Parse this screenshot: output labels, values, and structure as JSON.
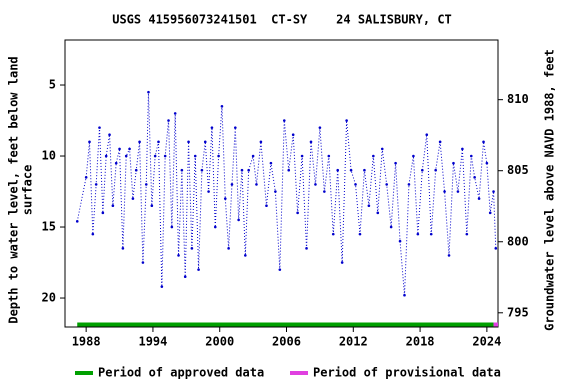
{
  "chart_data": {
    "type": "line",
    "title": "USGS 415956073241501  CT-SY    24 SALISBURY, CT",
    "ylabel": [
      "Depth to water level, feet below land",
      "surface"
    ],
    "y2label": "Groundwater level above NAVD 1988, feet",
    "xlim": [
      1986.1,
      2025.0
    ],
    "xticks": [
      1988,
      1994,
      2000,
      2006,
      2012,
      2018,
      2024
    ],
    "ylim": [
      1.83,
      22.04
    ],
    "y_inverted": true,
    "yticks": [
      5,
      10,
      15,
      20
    ],
    "y2lim": [
      794.0,
      814.2
    ],
    "y2ticks": [
      795,
      800,
      805,
      810
    ],
    "x": [
      1987.2,
      1988.0,
      1988.3,
      1988.6,
      1988.9,
      1989.2,
      1989.5,
      1989.8,
      1990.1,
      1990.4,
      1990.7,
      1991.0,
      1991.3,
      1991.6,
      1991.9,
      1992.2,
      1992.5,
      1992.8,
      1993.1,
      1993.4,
      1993.6,
      1993.9,
      1994.2,
      1994.5,
      1994.8,
      1995.1,
      1995.4,
      1995.7,
      1996.0,
      1996.3,
      1996.6,
      1996.9,
      1997.2,
      1997.5,
      1997.8,
      1998.1,
      1998.4,
      1998.7,
      1999.0,
      1999.3,
      1999.6,
      1999.9,
      2000.2,
      2000.5,
      2000.8,
      2001.1,
      2001.4,
      2001.7,
      2002.0,
      2002.3,
      2002.6,
      2003.0,
      2003.3,
      2003.7,
      2004.2,
      2004.6,
      2005.0,
      2005.4,
      2005.8,
      2006.2,
      2006.6,
      2007.0,
      2007.4,
      2007.8,
      2008.2,
      2008.6,
      2009.0,
      2009.4,
      2009.8,
      2010.2,
      2010.6,
      2011.0,
      2011.4,
      2011.8,
      2012.2,
      2012.6,
      2013.0,
      2013.4,
      2013.8,
      2014.2,
      2014.6,
      2015.0,
      2015.4,
      2015.8,
      2016.2,
      2016.6,
      2017.0,
      2017.4,
      2017.8,
      2018.2,
      2018.6,
      2019.0,
      2019.4,
      2019.8,
      2020.2,
      2020.6,
      2021.0,
      2021.4,
      2021.8,
      2022.2,
      2022.6,
      2022.9,
      2023.3,
      2023.7,
      2024.0,
      2024.3,
      2024.6,
      2024.8
    ],
    "series": [
      {
        "name": "Depth to water level",
        "color": "#0000cc",
        "values": [
          14.6,
          11.5,
          9.0,
          15.5,
          12.0,
          8.0,
          14.0,
          10.0,
          8.5,
          13.5,
          10.5,
          9.5,
          16.5,
          10.0,
          9.5,
          13.0,
          11.0,
          9.0,
          17.5,
          12.0,
          5.5,
          13.5,
          10.0,
          9.0,
          19.2,
          10.0,
          7.5,
          15.0,
          7.0,
          17.0,
          11.0,
          18.5,
          9.0,
          16.5,
          10.0,
          18.0,
          11.0,
          9.0,
          12.5,
          8.0,
          15.0,
          10.0,
          6.5,
          13.0,
          16.5,
          12.0,
          8.0,
          14.5,
          11.0,
          17.0,
          11.0,
          10.0,
          12.0,
          9.0,
          13.5,
          10.5,
          12.5,
          18.0,
          7.5,
          11.0,
          8.5,
          14.0,
          10.0,
          16.5,
          9.0,
          12.0,
          8.0,
          12.5,
          10.0,
          15.5,
          11.0,
          17.5,
          7.5,
          11.0,
          12.0,
          15.5,
          11.0,
          13.5,
          10.0,
          14.0,
          9.5,
          12.0,
          15.0,
          10.5,
          16.0,
          19.8,
          12.0,
          10.0,
          15.5,
          11.0,
          8.5,
          15.5,
          11.0,
          9.0,
          12.5,
          17.0,
          10.5,
          12.5,
          9.5,
          15.5,
          10.0,
          11.5,
          13.0,
          9.0,
          10.5,
          14.0,
          12.5,
          16.5
        ]
      }
    ],
    "periods": [
      {
        "name": "Period of approved data",
        "color": "#00a000",
        "range": [
          1987.2,
          2024.6
        ]
      },
      {
        "name": "Period of provisional data",
        "color": "#e040e0",
        "range": [
          2024.6,
          2025.0
        ]
      }
    ]
  }
}
